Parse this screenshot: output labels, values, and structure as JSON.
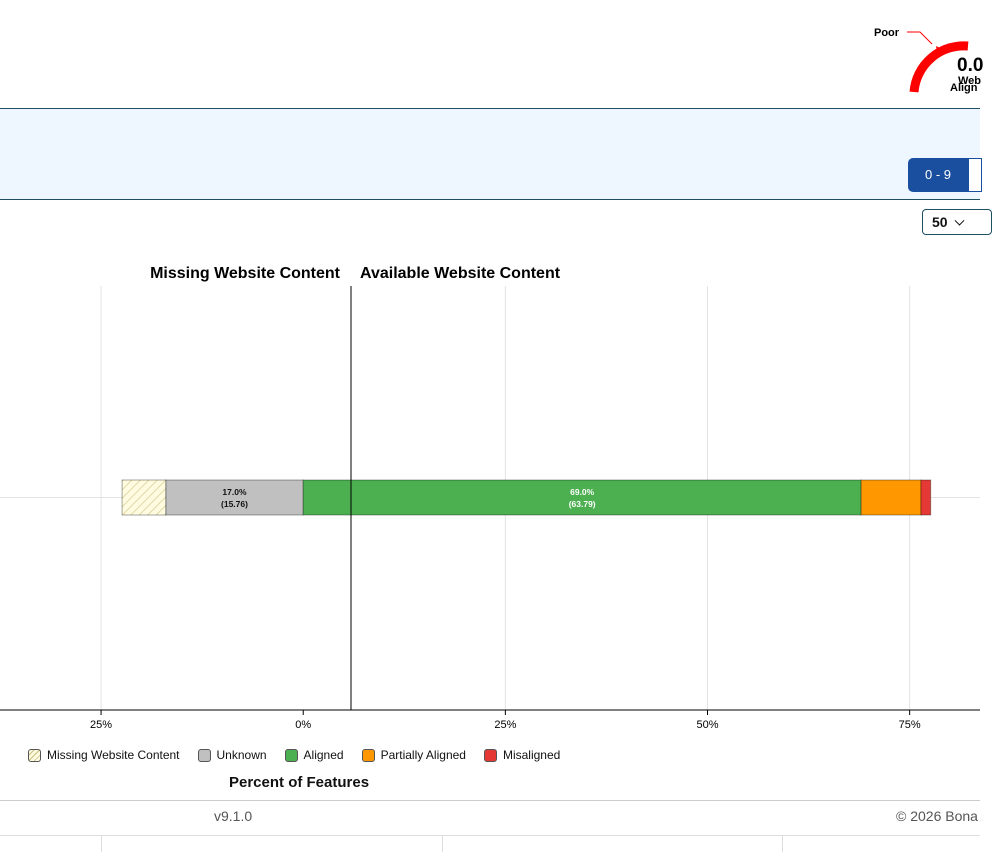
{
  "gauge": {
    "label": "Poor",
    "value": "0.0",
    "line1": "Web",
    "line2": "Align",
    "color": "#ff0000"
  },
  "controls": {
    "range_label": "0 - 9",
    "page_size": "50"
  },
  "footer": {
    "version": "v9.1.0",
    "copyright": "© 2026 Bona"
  },
  "colors": {
    "missing": "#fffbe0",
    "unknown": "#c0c0c0",
    "aligned": "#4caf50",
    "partial": "#ff9800",
    "misaligned": "#e53935"
  },
  "chart_data": {
    "type": "bar",
    "orientation": "horizontal-diverging",
    "left_title": "Missing Website Content",
    "right_title": "Available Website Content",
    "xlabel": "Percent of Features",
    "xlim": [
      -37.5,
      83.7
    ],
    "ticks": [
      {
        "value": -25,
        "label": "25%"
      },
      {
        "value": 0,
        "label": "0%"
      },
      {
        "value": 25,
        "label": "25%"
      },
      {
        "value": 50,
        "label": "50%"
      },
      {
        "value": 75,
        "label": "75%"
      }
    ],
    "grid": true,
    "series": [
      {
        "name": "Missing Website Content",
        "value": -5.4,
        "label": "",
        "color": "#fffbe0",
        "hatch": true
      },
      {
        "name": "Unknown",
        "value": -17.0,
        "label": "17.0%",
        "sublabel": "(15.76)",
        "color": "#c0c0c0"
      },
      {
        "name": "Aligned",
        "value": 69.0,
        "label": "69.0%",
        "sublabel": "(63.79)",
        "color": "#4caf50"
      },
      {
        "name": "Partially Aligned",
        "value": 7.4,
        "label": "",
        "color": "#ff9800"
      },
      {
        "name": "Misaligned",
        "value": 1.2,
        "label": "",
        "color": "#e53935"
      }
    ],
    "legend": {
      "placement": "bottom-left"
    }
  }
}
